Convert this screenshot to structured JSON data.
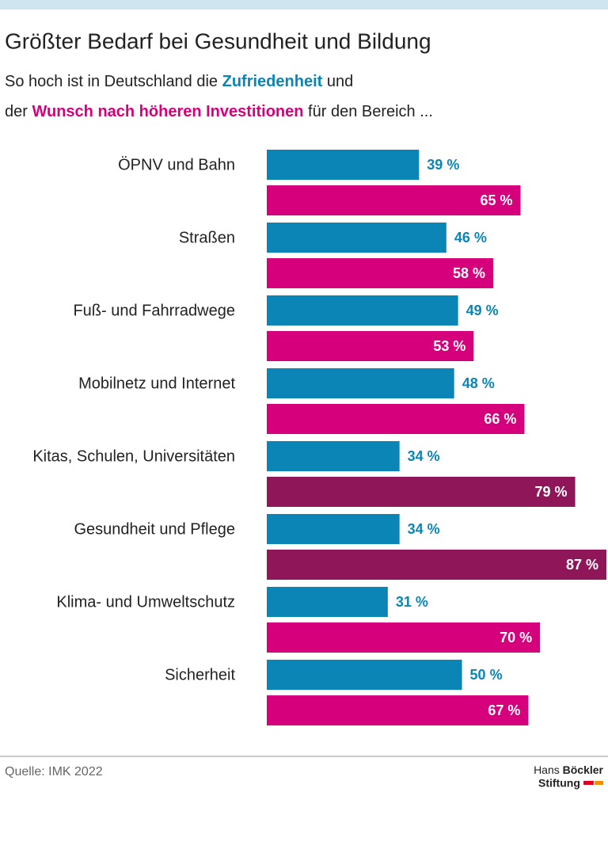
{
  "chart_data": {
    "type": "grouped-hbar",
    "title": "Größter Bedarf bei Gesundheit und Bildung",
    "subtitle": [
      "So hoch ist in Deutschland die",
      "und",
      "der",
      "für den Bereich ..."
    ],
    "categories": [
      "ÖPNV und Bahn",
      "Straßen",
      "Fuß- und Fahrradwege",
      "Mobilnetz und Internet",
      "Kitas, Schulen, Universitäten",
      "Gesundheit und Pflege",
      "Klima- und Umweltschutz",
      "Sicherheit"
    ],
    "series": [
      {
        "name": "Zufriedenheit",
        "color": "#0a85b5",
        "values": [
          39,
          46,
          49,
          48,
          34,
          34,
          31,
          50
        ],
        "value_labels": [
          "39 %",
          "46 %",
          "49 %",
          "48 %",
          "34 %",
          "34 %",
          "31 %",
          "50 %"
        ]
      },
      {
        "name": "Wunsch nach höheren Investitionen",
        "color": "#d6007d",
        "colors": [
          "#d6007d",
          "#d6007d",
          "#d6007d",
          "#d6007d",
          "#8e1659",
          "#8e1659",
          "#d6007d",
          "#d6007d"
        ],
        "values": [
          65,
          58,
          53,
          66,
          79,
          87,
          70,
          67
        ],
        "value_labels": [
          "65 %",
          "58 %",
          "53 %",
          "66 %",
          "79 %",
          "87 %",
          "70 %",
          "67 %"
        ]
      }
    ],
    "source": "Quelle: IMK 2022",
    "logo": [
      "Hans",
      "Böckler",
      "Stiftung"
    ]
  }
}
